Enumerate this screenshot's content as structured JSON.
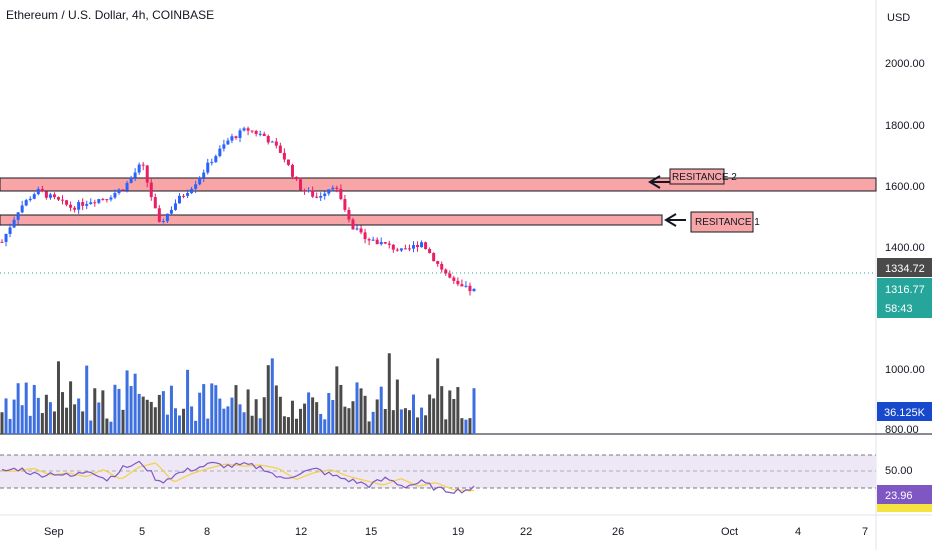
{
  "header": {
    "title": "Ethereum / U.S. Dollar, 4h, COINBASE"
  },
  "price_axis": {
    "currency": "USD",
    "ticks": [
      "2000.00",
      "1800.00",
      "1600.00",
      "1400.00"
    ]
  },
  "volume_axis": {
    "ticks": [
      "1000.00",
      "800.00"
    ]
  },
  "rsi_axis": {
    "ticks": [
      "50.00"
    ]
  },
  "badges": {
    "last_price": "1334.72",
    "current_price": "1316.77",
    "countdown": "58:43",
    "volume_value": "36.125K",
    "rsi_value": "23.96"
  },
  "annotations": {
    "resistance_1": "RESITANCE 1",
    "resistance_2": "RESITANCE 2"
  },
  "x_axis": {
    "labels": [
      "Sep",
      "5",
      "8",
      "12",
      "15",
      "19",
      "22",
      "26",
      "Oct",
      "4",
      "7"
    ]
  },
  "colors": {
    "up": "#2962ff",
    "down": "#e91e63",
    "volume_blue": "#3d6fe0",
    "volume_gray": "#4a4a4a",
    "resistance_fill": "#f8a5a8",
    "resistance_border": "#131722",
    "rsi_line": "#7e57c2",
    "rsi_ma": "#f5d142",
    "rsi_band": "#ede7f6",
    "price_line": "#26a69a",
    "last_badge": "#4a4a4a",
    "current_badge": "#26a69a",
    "volume_badge": "#1848cc",
    "rsi_badge": "#7e57c2"
  },
  "chart_data": {
    "type": "candlestick",
    "title": "Ethereum / U.S. Dollar, 4h, COINBASE",
    "y_unit": "USD",
    "ylim": [
      1290,
      2080
    ],
    "x_labels": [
      "Sep",
      "5",
      "8",
      "12",
      "15",
      "19",
      "22",
      "26",
      "Oct",
      "4",
      "7"
    ],
    "price_close_path": [
      1460,
      1560,
      1610,
      1585,
      1560,
      1580,
      1590,
      1620,
      1690,
      1510,
      1580,
      1630,
      1700,
      1760,
      1790,
      1770,
      1720,
      1620,
      1590,
      1630,
      1500,
      1470,
      1450,
      1430,
      1460,
      1390,
      1330,
      1317
    ],
    "resistance_levels": [
      {
        "label": "RESITANCE 2",
        "low": 1585,
        "high": 1625
      },
      {
        "label": "RESITANCE 1",
        "low": 1475,
        "high": 1500
      }
    ],
    "last_price": 1334.72,
    "current_price": 1316.77,
    "volume": {
      "last": "36.125K"
    },
    "rsi": {
      "last": 23.96,
      "band": [
        30,
        70
      ],
      "midline": 50,
      "path": [
        55,
        60,
        48,
        52,
        45,
        58,
        40,
        62,
        70,
        35,
        50,
        60,
        68,
        64,
        66,
        60,
        40,
        52,
        58,
        46,
        38,
        30,
        42,
        28,
        35,
        22,
        20,
        24
      ]
    }
  }
}
